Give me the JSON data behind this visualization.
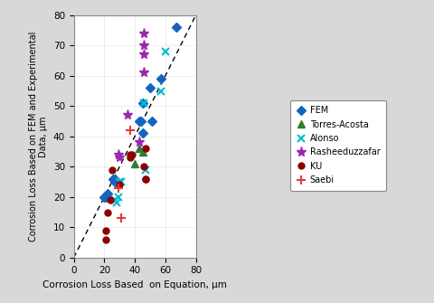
{
  "title": "",
  "xlabel": "Corrosion Loss Based  on Equation, μm",
  "ylabel": "Corrosion Loss Based on FEM and Experimental\nData, μm",
  "xlim": [
    0,
    80
  ],
  "ylim": [
    0,
    80
  ],
  "xticks": [
    0,
    20,
    40,
    60,
    80
  ],
  "yticks": [
    0,
    10,
    20,
    30,
    40,
    50,
    60,
    70,
    80
  ],
  "diagonal_line": [
    [
      0,
      80
    ],
    [
      0,
      80
    ]
  ],
  "series": {
    "FEM": {
      "color": "#1565C0",
      "marker": "D",
      "markersize": 5,
      "x": [
        20,
        21,
        22,
        26,
        27,
        27,
        43,
        44,
        45,
        45,
        50,
        51,
        57,
        67
      ],
      "y": [
        20,
        20,
        21,
        26,
        25,
        26,
        45,
        45,
        41,
        51,
        56,
        45,
        59,
        76
      ]
    },
    "Torres-Acosta": {
      "color": "#2E7D32",
      "marker": "^",
      "markersize": 6,
      "x": [
        40,
        43,
        45
      ],
      "y": [
        31,
        36,
        35
      ]
    },
    "Alonso": {
      "color": "#00BCD4",
      "marker": "x",
      "markersize": 6,
      "x": [
        27,
        28,
        29,
        30,
        31,
        46,
        47,
        57,
        60
      ],
      "y": [
        19,
        18,
        20,
        25,
        25,
        51,
        29,
        55,
        68
      ]
    },
    "Rasheeduzzafar": {
      "color": "#9C27B0",
      "marker": "*",
      "markersize": 8,
      "x": [
        29,
        30,
        35,
        43,
        46,
        46,
        46,
        46
      ],
      "y": [
        34,
        33,
        47,
        38,
        61,
        67,
        70,
        74
      ]
    },
    "KU": {
      "color": "#8B0000",
      "marker": "o",
      "markersize": 5,
      "x": [
        21,
        21,
        22,
        24,
        25,
        30,
        37,
        37,
        38,
        46,
        47,
        47,
        47
      ],
      "y": [
        6,
        9,
        15,
        19,
        29,
        24,
        34,
        33,
        34,
        30,
        26,
        26,
        36
      ]
    },
    "Saebi": {
      "color": "#E53935",
      "marker": "+",
      "markersize": 7,
      "x": [
        29,
        31,
        37
      ],
      "y": [
        23,
        13,
        42
      ]
    }
  },
  "figsize": [
    4.8,
    3.35
  ],
  "dpi": 100,
  "bg_color": "#D8D8D8",
  "plot_bg": "#FFFFFF"
}
